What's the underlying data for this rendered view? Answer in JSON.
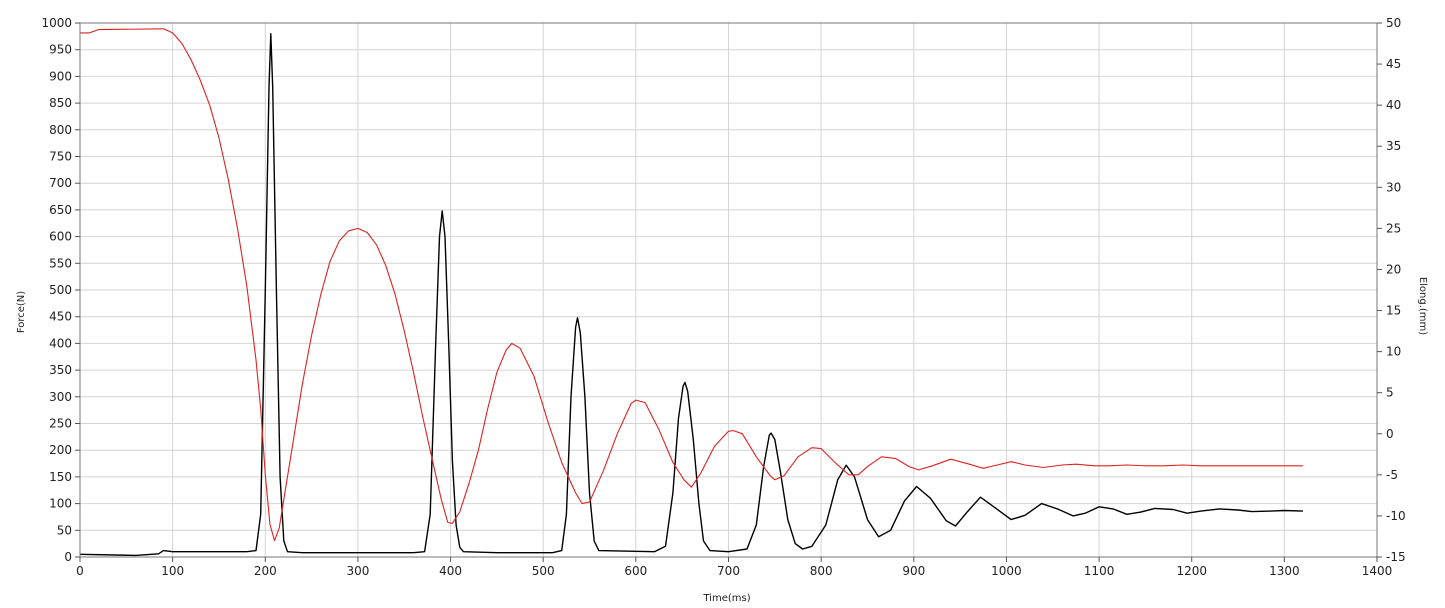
{
  "chart_data": {
    "type": "line",
    "xlabel": "Time(ms)",
    "ylabel_left": "Force(N)",
    "ylabel_right": "Elong.(mm)",
    "xlim": [
      0,
      1400
    ],
    "ylim_left": [
      0,
      1000
    ],
    "ylim_right": [
      -15,
      50
    ],
    "x_ticks": [
      0,
      100,
      200,
      300,
      400,
      500,
      600,
      700,
      800,
      900,
      1000,
      1100,
      1200,
      1300,
      1400
    ],
    "y_left_ticks": [
      0,
      50,
      100,
      150,
      200,
      250,
      300,
      350,
      400,
      450,
      500,
      550,
      600,
      650,
      700,
      750,
      800,
      850,
      900,
      950,
      1000
    ],
    "y_right_ticks": [
      -15,
      -10,
      -5,
      0,
      5,
      10,
      15,
      20,
      25,
      30,
      35,
      40,
      45,
      50
    ],
    "grid": true,
    "series": [
      {
        "color": "#000000",
        "axis": "left",
        "points": [
          [
            0,
            5
          ],
          [
            60,
            3
          ],
          [
            85,
            6
          ],
          [
            90,
            12
          ],
          [
            100,
            10
          ],
          [
            180,
            10
          ],
          [
            190,
            12
          ],
          [
            195,
            80
          ],
          [
            200,
            500
          ],
          [
            204,
            880
          ],
          [
            206,
            980
          ],
          [
            208,
            880
          ],
          [
            212,
            500
          ],
          [
            216,
            150
          ],
          [
            220,
            30
          ],
          [
            224,
            10
          ],
          [
            240,
            8
          ],
          [
            360,
            8
          ],
          [
            372,
            10
          ],
          [
            378,
            80
          ],
          [
            384,
            400
          ],
          [
            388,
            600
          ],
          [
            391,
            648
          ],
          [
            394,
            600
          ],
          [
            398,
            400
          ],
          [
            402,
            180
          ],
          [
            406,
            60
          ],
          [
            410,
            18
          ],
          [
            414,
            10
          ],
          [
            450,
            8
          ],
          [
            510,
            8
          ],
          [
            520,
            12
          ],
          [
            525,
            80
          ],
          [
            530,
            300
          ],
          [
            535,
            430
          ],
          [
            537,
            448
          ],
          [
            540,
            420
          ],
          [
            545,
            300
          ],
          [
            550,
            120
          ],
          [
            555,
            30
          ],
          [
            560,
            12
          ],
          [
            620,
            10
          ],
          [
            632,
            20
          ],
          [
            640,
            120
          ],
          [
            646,
            260
          ],
          [
            651,
            320
          ],
          [
            653,
            327
          ],
          [
            656,
            310
          ],
          [
            662,
            220
          ],
          [
            668,
            100
          ],
          [
            673,
            30
          ],
          [
            680,
            12
          ],
          [
            700,
            10
          ],
          [
            720,
            15
          ],
          [
            730,
            60
          ],
          [
            738,
            170
          ],
          [
            744,
            228
          ],
          [
            746,
            232
          ],
          [
            750,
            220
          ],
          [
            756,
            160
          ],
          [
            764,
            70
          ],
          [
            772,
            25
          ],
          [
            780,
            15
          ],
          [
            790,
            20
          ],
          [
            805,
            60
          ],
          [
            818,
            145
          ],
          [
            827,
            172
          ],
          [
            836,
            150
          ],
          [
            850,
            70
          ],
          [
            862,
            38
          ],
          [
            875,
            50
          ],
          [
            890,
            105
          ],
          [
            903,
            132
          ],
          [
            918,
            110
          ],
          [
            935,
            68
          ],
          [
            945,
            58
          ],
          [
            958,
            85
          ],
          [
            972,
            112
          ],
          [
            988,
            92
          ],
          [
            1005,
            70
          ],
          [
            1020,
            78
          ],
          [
            1038,
            100
          ],
          [
            1055,
            90
          ],
          [
            1072,
            77
          ],
          [
            1085,
            82
          ],
          [
            1100,
            94
          ],
          [
            1115,
            90
          ],
          [
            1130,
            80
          ],
          [
            1145,
            84
          ],
          [
            1160,
            91
          ],
          [
            1180,
            89
          ],
          [
            1195,
            82
          ],
          [
            1210,
            86
          ],
          [
            1230,
            90
          ],
          [
            1250,
            88
          ],
          [
            1265,
            85
          ],
          [
            1285,
            86
          ],
          [
            1300,
            87
          ],
          [
            1320,
            86
          ]
        ]
      },
      {
        "color": "#dd2222",
        "axis": "right",
        "points": [
          [
            0,
            48.8
          ],
          [
            10,
            48.8
          ],
          [
            20,
            49.2
          ],
          [
            90,
            49.3
          ],
          [
            100,
            48.8
          ],
          [
            110,
            47.5
          ],
          [
            120,
            45.5
          ],
          [
            130,
            43
          ],
          [
            140,
            40
          ],
          [
            150,
            36
          ],
          [
            160,
            31
          ],
          [
            170,
            25
          ],
          [
            180,
            18
          ],
          [
            185,
            13.5
          ],
          [
            190,
            9
          ],
          [
            195,
            3
          ],
          [
            200,
            -5
          ],
          [
            205,
            -11
          ],
          [
            210,
            -13
          ],
          [
            215,
            -11.5
          ],
          [
            220,
            -8
          ],
          [
            230,
            -1
          ],
          [
            240,
            6
          ],
          [
            250,
            12
          ],
          [
            260,
            17
          ],
          [
            270,
            21
          ],
          [
            280,
            23.5
          ],
          [
            290,
            24.7
          ],
          [
            300,
            25
          ],
          [
            310,
            24.5
          ],
          [
            320,
            23
          ],
          [
            330,
            20.5
          ],
          [
            340,
            17
          ],
          [
            350,
            12.5
          ],
          [
            360,
            7.5
          ],
          [
            370,
            2
          ],
          [
            380,
            -3
          ],
          [
            390,
            -8
          ],
          [
            397,
            -10.8
          ],
          [
            402,
            -10.9
          ],
          [
            410,
            -9.5
          ],
          [
            420,
            -6
          ],
          [
            430,
            -2
          ],
          [
            440,
            3
          ],
          [
            450,
            7.5
          ],
          [
            460,
            10.2
          ],
          [
            466,
            11
          ],
          [
            475,
            10.4
          ],
          [
            490,
            7
          ],
          [
            505,
            1.5
          ],
          [
            520,
            -3.5
          ],
          [
            535,
            -7.2
          ],
          [
            542,
            -8.5
          ],
          [
            550,
            -8.3
          ],
          [
            565,
            -4.5
          ],
          [
            580,
            0
          ],
          [
            595,
            3.7
          ],
          [
            600,
            4.1
          ],
          [
            610,
            3.8
          ],
          [
            625,
            0.5
          ],
          [
            640,
            -3.5
          ],
          [
            652,
            -5.6
          ],
          [
            660,
            -6.5
          ],
          [
            670,
            -4.8
          ],
          [
            685,
            -1.5
          ],
          [
            700,
            0.3
          ],
          [
            705,
            0.4
          ],
          [
            715,
            0
          ],
          [
            730,
            -2.8
          ],
          [
            745,
            -5.1
          ],
          [
            750,
            -5.6
          ],
          [
            760,
            -5.1
          ],
          [
            775,
            -2.8
          ],
          [
            790,
            -1.7
          ],
          [
            800,
            -1.8
          ],
          [
            815,
            -3.5
          ],
          [
            830,
            -5
          ],
          [
            840,
            -5
          ],
          [
            850,
            -4
          ],
          [
            865,
            -2.8
          ],
          [
            880,
            -3
          ],
          [
            895,
            -4
          ],
          [
            905,
            -4.4
          ],
          [
            920,
            -3.9
          ],
          [
            940,
            -3.1
          ],
          [
            960,
            -3.7
          ],
          [
            975,
            -4.2
          ],
          [
            990,
            -3.8
          ],
          [
            1005,
            -3.4
          ],
          [
            1020,
            -3.8
          ],
          [
            1040,
            -4.1
          ],
          [
            1060,
            -3.8
          ],
          [
            1075,
            -3.7
          ],
          [
            1095,
            -3.9
          ],
          [
            1110,
            -3.9
          ],
          [
            1130,
            -3.8
          ],
          [
            1150,
            -3.9
          ],
          [
            1170,
            -3.9
          ],
          [
            1190,
            -3.8
          ],
          [
            1210,
            -3.9
          ],
          [
            1250,
            -3.9
          ],
          [
            1290,
            -3.9
          ],
          [
            1320,
            -3.9
          ]
        ]
      }
    ]
  }
}
